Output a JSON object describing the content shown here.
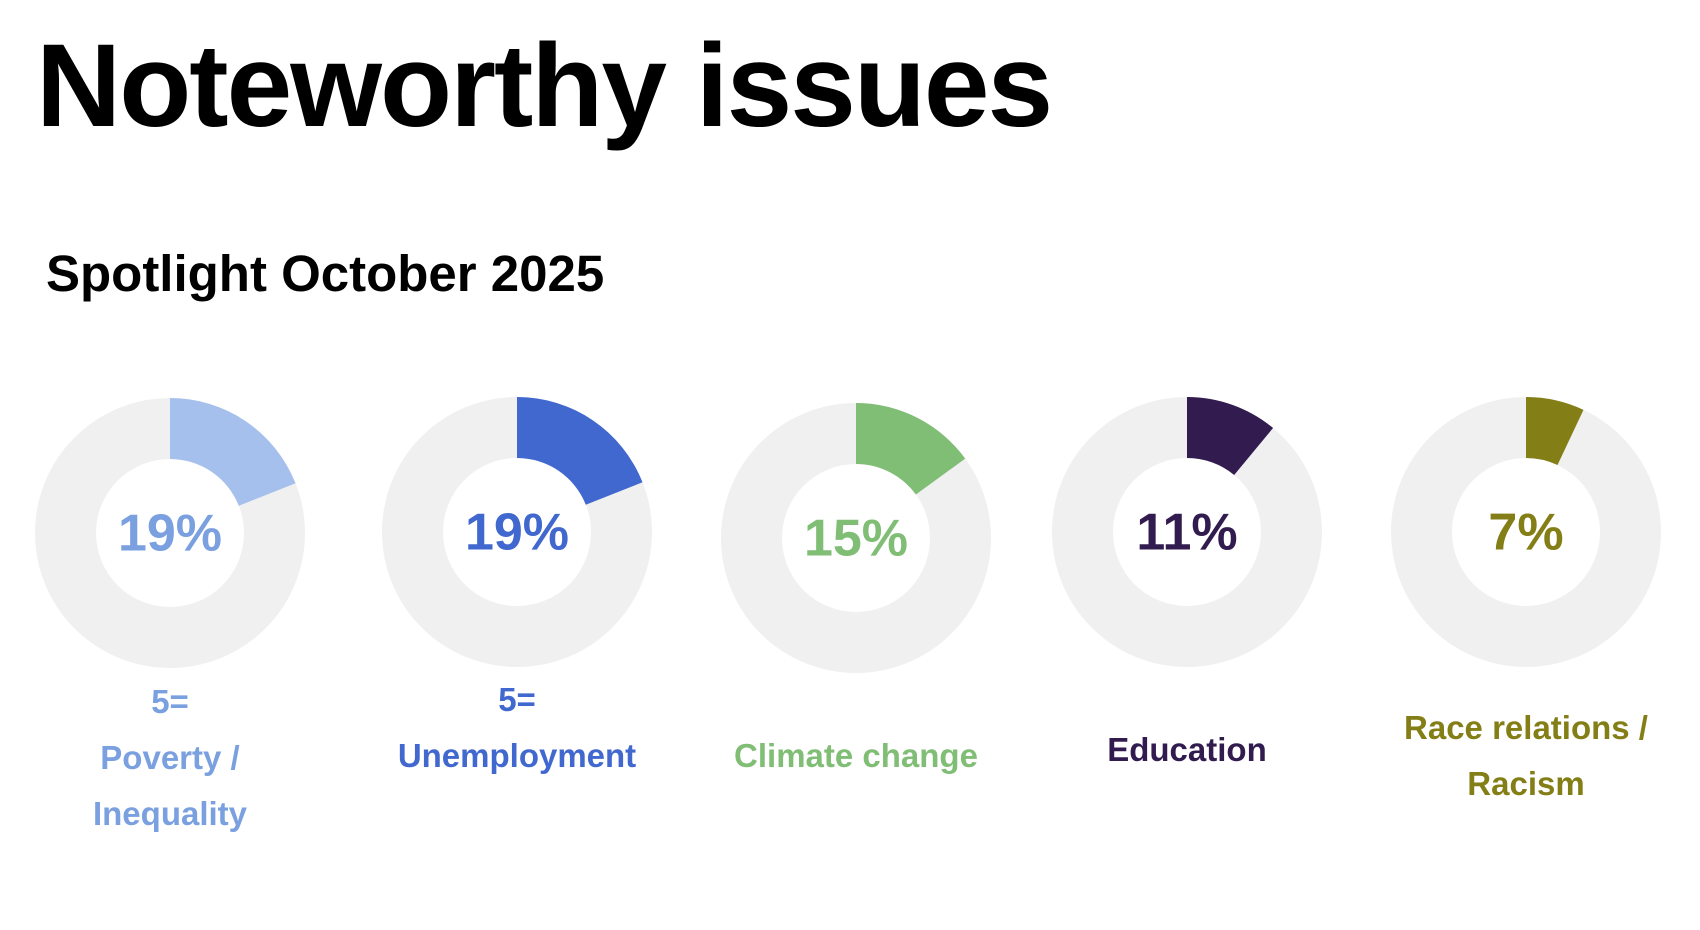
{
  "page": {
    "title": "Noteworthy issues",
    "subtitle": "Spotlight October 2025"
  },
  "colors": {
    "track": "#f0f0f0",
    "background": "#ffffff"
  },
  "chart_data": {
    "type": "pie",
    "title": "Noteworthy issues",
    "subtitle": "Spotlight October 2025",
    "unit": "%",
    "items": [
      {
        "rank": "5=",
        "lines": [
          "Poverty /",
          "Inequality"
        ],
        "category": "Poverty / Inequality",
        "value": 19,
        "label": "19%",
        "color": "#a5c0ec",
        "text_color": "#7aa0e0"
      },
      {
        "rank": "5=",
        "lines": [
          "Unemployment"
        ],
        "category": "Unemployment",
        "value": 19,
        "label": "19%",
        "color": "#4168cf",
        "text_color": "#4168cf"
      },
      {
        "rank": "",
        "lines": [
          "Climate change"
        ],
        "category": "Climate change",
        "value": 15,
        "label": "15%",
        "color": "#80bd75",
        "text_color": "#80bd75"
      },
      {
        "rank": "",
        "lines": [
          "Education"
        ],
        "category": "Education",
        "value": 11,
        "label": "11%",
        "color": "#321c4f",
        "text_color": "#321c4f"
      },
      {
        "rank": "",
        "lines": [
          "Race relations /",
          "Racism"
        ],
        "category": "Race relations / Racism",
        "value": 7,
        "label": "7%",
        "color": "#847e17",
        "text_color": "#847e17"
      }
    ]
  }
}
